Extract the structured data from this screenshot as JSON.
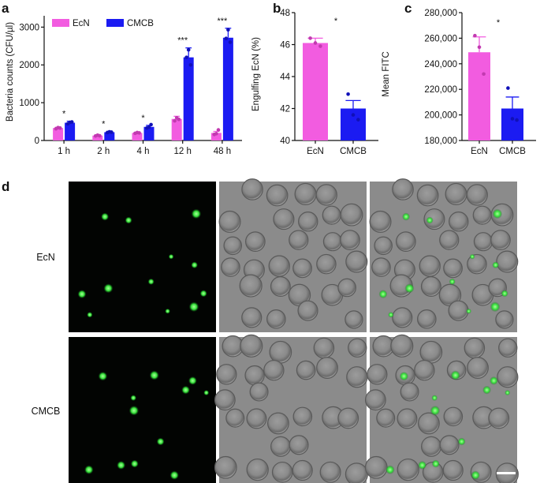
{
  "figure": {
    "panel_labels": [
      "a",
      "b",
      "c",
      "d"
    ],
    "image_rows": [
      "EcN",
      "CMCB"
    ],
    "colors": {
      "EcN": "#f25ce0",
      "CMCB": "#1b1bf2"
    }
  },
  "chart_data": [
    {
      "type": "bar",
      "panel": "a",
      "categories": [
        "1 h",
        "2 h",
        "4 h",
        "12 h",
        "48 h"
      ],
      "series": [
        {
          "name": "EcN",
          "values": [
            330,
            130,
            200,
            570,
            200
          ],
          "errors": [
            20,
            15,
            15,
            70,
            40
          ],
          "points": [
            [
              310,
              340,
              330
            ],
            [
              120,
              140,
              125
            ],
            [
              190,
              210,
              200
            ],
            [
              520,
              600,
              560
            ],
            [
              160,
              180,
              280
            ]
          ]
        },
        {
          "name": "CMCB",
          "values": [
            470,
            220,
            360,
            2200,
            2720
          ],
          "errors": [
            40,
            20,
            40,
            250,
            250
          ],
          "points": [
            [
              440,
              480,
              490
            ],
            [
              210,
              230,
              220
            ],
            [
              330,
              350,
              420
            ],
            [
              2200,
              2400,
              2000
            ],
            [
              2700,
              2930,
              2600
            ]
          ]
        }
      ],
      "significance": [
        "*",
        "*",
        "*",
        "***",
        "***"
      ],
      "ylabel": "Bacteria counts (CFU/µl)",
      "ylim": [
        0,
        3300
      ],
      "yticks": [
        0,
        1000,
        2000,
        3000
      ],
      "legend": "top-left"
    },
    {
      "type": "bar",
      "panel": "b",
      "categories": [
        "EcN",
        "CMCB"
      ],
      "values": [
        46.1,
        42.0
      ],
      "errors": [
        0.3,
        0.5
      ],
      "points": [
        [
          46.4,
          46.1,
          45.9
        ],
        [
          42.9,
          41.6,
          41.3
        ]
      ],
      "significance": "*",
      "ylabel": "Engulfing EcN (%)",
      "ylim": [
        40,
        48
      ],
      "yticks": [
        40,
        42,
        44,
        46,
        48
      ]
    },
    {
      "type": "bar",
      "panel": "c",
      "categories": [
        "EcN",
        "CMCB"
      ],
      "values": [
        249000,
        205000
      ],
      "errors": [
        12000,
        9000
      ],
      "points": [
        [
          262000,
          253000,
          232000
        ],
        [
          221000,
          197000,
          196000
        ]
      ],
      "significance": "*",
      "ylabel": "Mean FITC",
      "ylim": [
        180000,
        280000
      ],
      "yticks": [
        "180,000",
        "200,000",
        "220,000",
        "240,000",
        "260,000",
        "280,000"
      ],
      "ytick_values": [
        180000,
        200000,
        220000,
        240000,
        260000,
        280000
      ]
    }
  ]
}
